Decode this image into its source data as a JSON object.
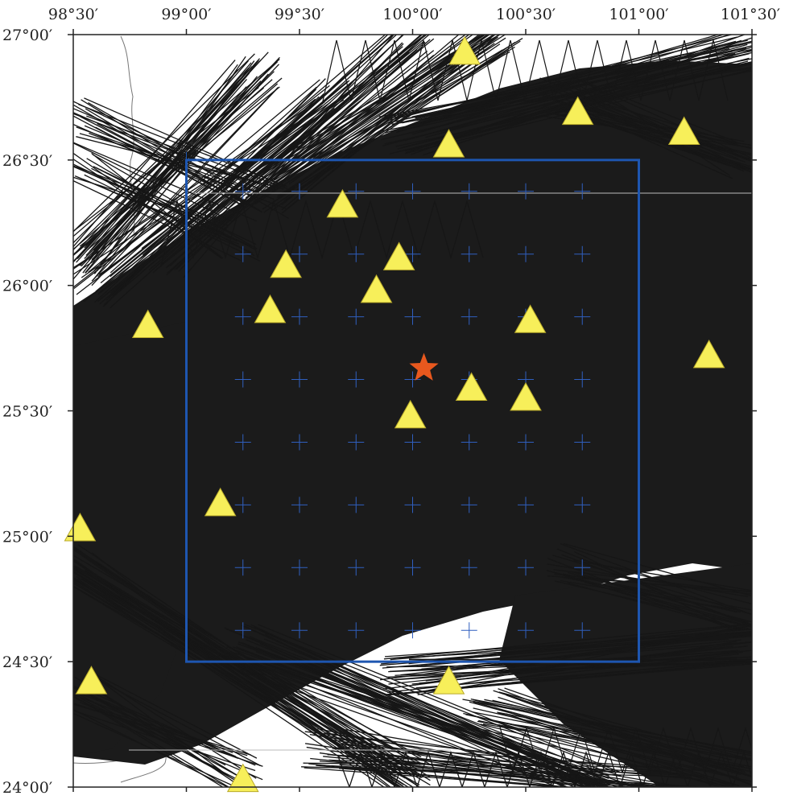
{
  "map": {
    "lon_range": [
      98.5,
      101.5
    ],
    "lat_range": [
      24.0,
      27.0
    ],
    "lon_ticks": [
      {
        "value": 98.5,
        "label": "98°30′"
      },
      {
        "value": 99.0,
        "label": "99°00′"
      },
      {
        "value": 99.5,
        "label": "99°30′"
      },
      {
        "value": 100.0,
        "label": "100°00′"
      },
      {
        "value": 100.5,
        "label": "100°30′"
      },
      {
        "value": 101.0,
        "label": "101°00′"
      },
      {
        "value": 101.5,
        "label": "101°30′"
      }
    ],
    "lat_ticks": [
      {
        "value": 27.0,
        "label": "27°00′"
      },
      {
        "value": 26.5,
        "label": "26°30′"
      },
      {
        "value": 26.0,
        "label": "26°00′"
      },
      {
        "value": 25.5,
        "label": "25°30′"
      },
      {
        "value": 25.0,
        "label": "25°00′"
      },
      {
        "value": 24.5,
        "label": "24°30′"
      },
      {
        "value": 24.0,
        "label": "24°00′"
      }
    ],
    "study_box": {
      "lon_min": 99.0,
      "lon_max": 101.0,
      "lat_min": 24.5,
      "lat_max": 26.5
    },
    "grid_nodes": {
      "lons": [
        99.25,
        99.5,
        99.75,
        100.0,
        100.25,
        100.5,
        100.75
      ],
      "lats": [
        26.375,
        26.125,
        25.875,
        25.625,
        25.375,
        25.125,
        24.875,
        24.625
      ]
    },
    "epicenter": {
      "lon": 100.05,
      "lat": 25.67
    },
    "stations": [
      {
        "lon": 100.23,
        "lat": 26.93
      },
      {
        "lon": 100.73,
        "lat": 26.69
      },
      {
        "lon": 101.2,
        "lat": 26.61
      },
      {
        "lon": 100.16,
        "lat": 26.56
      },
      {
        "lon": 99.69,
        "lat": 26.32
      },
      {
        "lon": 99.94,
        "lat": 26.11
      },
      {
        "lon": 99.44,
        "lat": 26.08
      },
      {
        "lon": 99.84,
        "lat": 25.98
      },
      {
        "lon": 99.37,
        "lat": 25.9
      },
      {
        "lon": 98.83,
        "lat": 25.84
      },
      {
        "lon": 100.52,
        "lat": 25.86
      },
      {
        "lon": 101.31,
        "lat": 25.72
      },
      {
        "lon": 100.26,
        "lat": 25.59
      },
      {
        "lon": 100.5,
        "lat": 25.55
      },
      {
        "lon": 99.99,
        "lat": 25.48
      },
      {
        "lon": 99.15,
        "lat": 25.13
      },
      {
        "lon": 98.53,
        "lat": 25.03
      },
      {
        "lon": 98.58,
        "lat": 24.42
      },
      {
        "lon": 100.16,
        "lat": 24.42
      },
      {
        "lon": 99.25,
        "lat": 24.03
      }
    ],
    "colors": {
      "ray_paths": "#161616",
      "ray_mass": "#1b1b1b",
      "study_box": "#1e56b0",
      "grid_cross": "#2f5fbf",
      "station_fill": "#f7ef5a",
      "station_stroke": "#b8a92a",
      "epicenter": "#e8581e",
      "frame": "#222222",
      "coastline": "#777777"
    }
  }
}
